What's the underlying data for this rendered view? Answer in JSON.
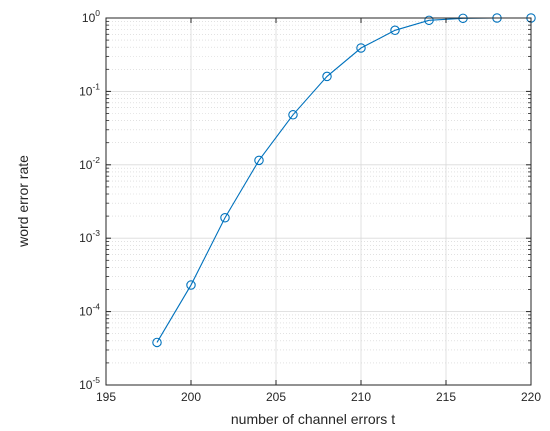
{
  "chart_data": {
    "type": "line",
    "title": "",
    "xlabel": "number of channel errors t",
    "ylabel": "word error rate",
    "xlim": [
      195,
      220
    ],
    "ylim": [
      1e-05,
      1
    ],
    "yscale": "log",
    "grid": true,
    "minor_grid": true,
    "legend": "none",
    "x_ticks": [
      195,
      200,
      205,
      210,
      215,
      220
    ],
    "y_ticks": [
      {
        "base": "10",
        "exp": "-5",
        "value": 1e-05
      },
      {
        "base": "10",
        "exp": "-4",
        "value": 0.0001
      },
      {
        "base": "10",
        "exp": "-3",
        "value": 0.001
      },
      {
        "base": "10",
        "exp": "-2",
        "value": 0.01
      },
      {
        "base": "10",
        "exp": "-1",
        "value": 0.1
      },
      {
        "base": "10",
        "exp": "0",
        "value": 1
      }
    ],
    "series": [
      {
        "marker": "circle",
        "color": "#0072bd",
        "points": [
          {
            "x": 198,
            "y": 3.8e-05
          },
          {
            "x": 200,
            "y": 0.00023
          },
          {
            "x": 202,
            "y": 0.0019
          },
          {
            "x": 204,
            "y": 0.0115
          },
          {
            "x": 206,
            "y": 0.048
          },
          {
            "x": 208,
            "y": 0.16
          },
          {
            "x": 210,
            "y": 0.39
          },
          {
            "x": 212,
            "y": 0.68
          },
          {
            "x": 214,
            "y": 0.93
          },
          {
            "x": 216,
            "y": 0.99
          },
          {
            "x": 218,
            "y": 1.0
          },
          {
            "x": 220,
            "y": 1.0
          }
        ]
      }
    ]
  },
  "colors": {
    "series": "#0072bd",
    "axis": "#262626",
    "grid_major": "#d9d9d9",
    "grid_minor": "#d0d0d0"
  }
}
